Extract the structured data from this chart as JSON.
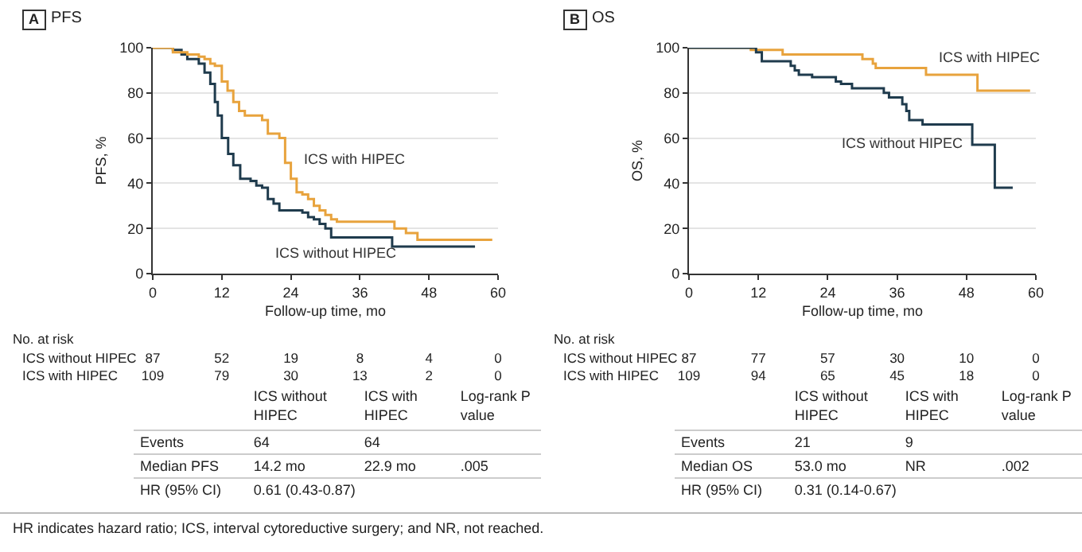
{
  "chart_data": [
    {
      "type": "step",
      "title": "PFS",
      "xlabel": "Follow-up time, mo",
      "ylabel": "PFS, %",
      "xlim": [
        0,
        60
      ],
      "xticks": [
        0,
        12,
        24,
        36,
        48,
        60
      ],
      "ylim": [
        0,
        100
      ],
      "yticks": [
        0,
        20,
        40,
        60,
        80,
        100
      ],
      "grid": "y",
      "legend": false,
      "series": [
        {
          "name": "ICS without HIPEC",
          "color": "#1f3b4d",
          "x": [
            0,
            3.5,
            5,
            6,
            8,
            9,
            10,
            10.8,
            11.3,
            12,
            13.1,
            14,
            15.2,
            17,
            18,
            19,
            20,
            21,
            22,
            26,
            27,
            28,
            29,
            30,
            31,
            41.6,
            56
          ],
          "values": [
            100,
            99,
            97,
            95,
            93,
            89,
            84,
            76,
            70,
            60,
            53,
            48,
            42,
            41,
            39,
            38,
            33,
            31,
            28,
            27,
            25,
            24,
            22,
            20,
            16,
            12,
            12
          ]
        },
        {
          "name": "ICS with HIPEC",
          "color": "#e8a33d",
          "x": [
            0,
            3.5,
            6,
            8,
            9,
            10,
            10.8,
            12,
            13,
            14,
            15,
            16,
            18,
            19,
            20,
            22,
            23,
            24,
            25,
            26,
            27,
            28,
            29,
            30,
            31,
            32,
            35,
            42,
            44,
            46,
            59
          ],
          "values": [
            100,
            98,
            97,
            96,
            95,
            93,
            92,
            85,
            81,
            76,
            72,
            70,
            70,
            68,
            62,
            60,
            49,
            42,
            36,
            35,
            33,
            30,
            28,
            26,
            24,
            23,
            23,
            20,
            18,
            15,
            15
          ]
        }
      ],
      "annotations": [
        "A",
        "No. at risk",
        "ICS without HIPEC",
        "87",
        "52",
        "19",
        "8",
        "4",
        "0",
        "ICS with HIPEC",
        "109",
        "79",
        "30",
        "13",
        "2",
        "0",
        "ICS without HIPEC",
        "ICS with HIPEC",
        "Log-rank P value",
        "Events",
        "64",
        "64",
        "Median PFS",
        "14.2 mo",
        "22.9 mo",
        ".005",
        "HR (95% CI)",
        "0.61 (0.43-0.87)",
        "HR indicates hazard ratio; ICS, interval cytoreductive surgery; and NR, not reached."
      ]
    },
    {
      "type": "step",
      "title": "OS",
      "xlabel": "Follow-up time, mo",
      "ylabel": "OS, %",
      "xlim": [
        0,
        60
      ],
      "xticks": [
        0,
        12,
        24,
        36,
        48,
        60
      ],
      "ylim": [
        0,
        100
      ],
      "yticks": [
        0,
        20,
        40,
        60,
        80,
        100
      ],
      "grid": "y",
      "legend": false,
      "series": [
        {
          "name": "ICS with HIPEC",
          "color": "#e8a33d",
          "x": [
            0,
            10.7,
            16.2,
            30,
            31.8,
            32.3,
            41,
            49.9,
            59
          ],
          "values": [
            100,
            99,
            97,
            95,
            93,
            91,
            88,
            81,
            81
          ]
        },
        {
          "name": "ICS without HIPEC",
          "color": "#1f3b4d",
          "x": [
            0,
            11.6,
            12.6,
            17.6,
            18.3,
            19,
            21.3,
            25.4,
            26.3,
            28.2,
            33.7,
            34.6,
            36.9,
            37.6,
            38.1,
            40.4,
            49,
            52.9,
            56
          ],
          "values": [
            100,
            98,
            94,
            92,
            90,
            88,
            87,
            85,
            84,
            82,
            80,
            78,
            75,
            72,
            68,
            66,
            57,
            38,
            38
          ]
        }
      ],
      "annotations": [
        "B",
        "No. at risk",
        "ICS without HIPEC",
        "87",
        "77",
        "57",
        "30",
        "10",
        "0",
        "ICS with HIPEC",
        "109",
        "94",
        "65",
        "45",
        "18",
        "0",
        "ICS without HIPEC",
        "ICS with HIPEC",
        "Log-rank P value",
        "Events",
        "21",
        "9",
        "Median OS",
        "53.0 mo",
        "NR",
        ".002",
        "HR (95% CI)",
        "0.31 (0.14-0.67)"
      ]
    }
  ]
}
